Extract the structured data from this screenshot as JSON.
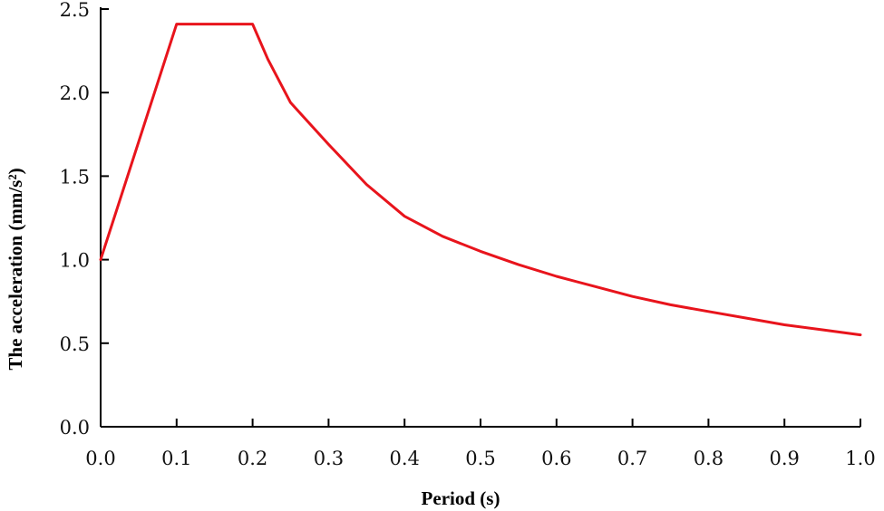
{
  "chart_data": {
    "type": "line",
    "title": "",
    "xlabel": "Period (s)",
    "ylabel": "The acceleration (mm/s²)",
    "xlim": [
      0.0,
      1.0
    ],
    "ylim": [
      0.0,
      2.5
    ],
    "x_ticks": [
      "0.0",
      "0.1",
      "0.2",
      "0.3",
      "0.4",
      "0.5",
      "0.6",
      "0.7",
      "0.8",
      "0.9",
      "1.0"
    ],
    "y_ticks": [
      "0.0",
      "0.5",
      "1.0",
      "1.5",
      "2.0",
      "2.5"
    ],
    "grid": false,
    "series": [
      {
        "color": "#e8141c",
        "x": [
          0.0,
          0.1,
          0.2,
          0.22,
          0.25,
          0.3,
          0.35,
          0.4,
          0.45,
          0.5,
          0.55,
          0.6,
          0.65,
          0.7,
          0.75,
          0.8,
          0.85,
          0.9,
          0.95,
          1.0
        ],
        "y": [
          1.0,
          2.41,
          2.41,
          2.2,
          1.94,
          1.69,
          1.45,
          1.26,
          1.14,
          1.05,
          0.97,
          0.9,
          0.84,
          0.78,
          0.73,
          0.69,
          0.65,
          0.61,
          0.58,
          0.55
        ]
      }
    ]
  }
}
